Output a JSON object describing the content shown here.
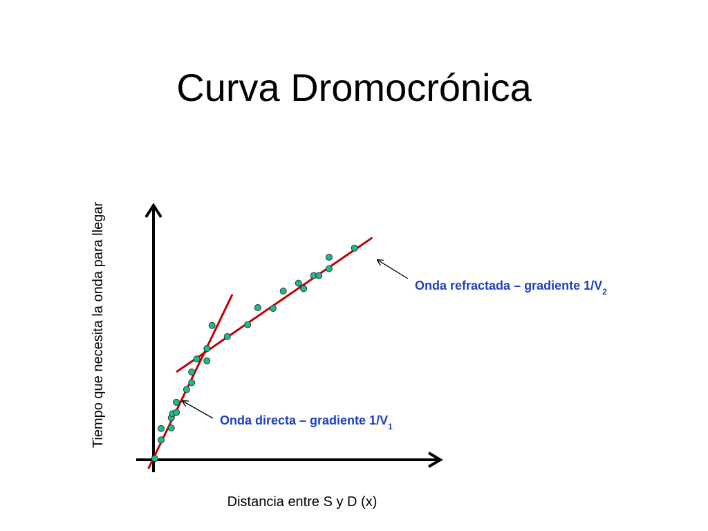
{
  "title": "Curva Dromocrónica",
  "colors": {
    "axis": "#000000",
    "fit_line": "#c00000",
    "point_fill": "#1abc8c",
    "point_stroke": "#333333",
    "annotation_text": "#1f3fbf"
  },
  "chart_data": {
    "type": "scatter",
    "title": "Curva Dromocrónica",
    "xlabel": "Distancia entre S y D (x)",
    "ylabel": "Tiempo que necesita la onda para llegar",
    "tick_labels": false,
    "grid": false,
    "xlim": [
      0,
      100
    ],
    "ylim": [
      0,
      100
    ],
    "series": [
      {
        "points": [
          [
            0.5,
            0.5
          ],
          [
            3,
            7.8
          ],
          [
            3,
            12.3
          ],
          [
            7,
            12.5
          ],
          [
            7,
            16.5
          ],
          [
            7.5,
            18.1
          ],
          [
            9,
            18.6
          ],
          [
            9,
            22.6
          ],
          [
            13,
            27.6
          ],
          [
            15,
            30.3
          ],
          [
            15,
            34.5
          ],
          [
            17,
            39.6
          ],
          [
            21,
            38.9
          ],
          [
            21,
            43.7
          ],
          [
            23,
            52.8
          ],
          [
            29,
            48.4
          ],
          [
            37,
            53.1
          ],
          [
            41,
            59.8
          ],
          [
            47,
            59.5
          ],
          [
            51,
            66.3
          ],
          [
            57,
            69.4
          ],
          [
            59,
            67.3
          ],
          [
            63,
            72.4
          ],
          [
            65,
            72.4
          ],
          [
            69,
            75.1
          ],
          [
            69,
            79.6
          ],
          [
            79,
            83.2
          ]
        ]
      }
    ],
    "fit_lines": [
      {
        "label": "Onda directa – gradiente 1/V",
        "subscript": "1",
        "start": [
          -2,
          -3.5
        ],
        "end": [
          31,
          65
        ]
      },
      {
        "label": "Onda refractada – gradiente 1/V",
        "subscript": "2",
        "start": [
          9,
          34.5
        ],
        "end": [
          86,
          87.3
        ]
      }
    ]
  }
}
